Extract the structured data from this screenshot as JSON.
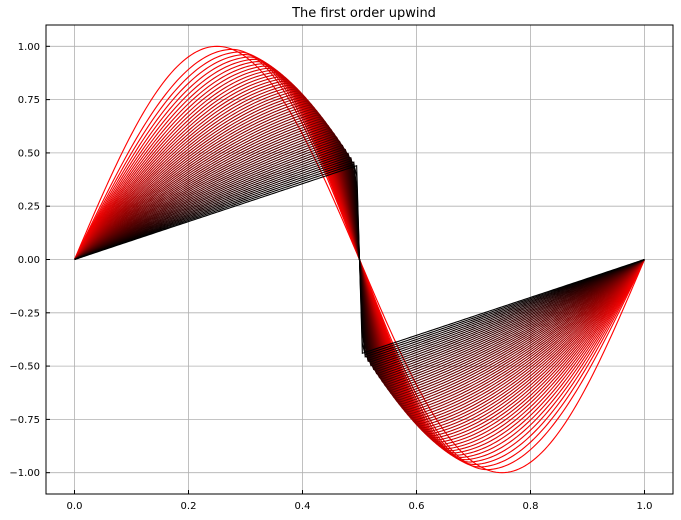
{
  "chart_data": {
    "type": "line",
    "title": "The first order upwind",
    "xlabel": "",
    "ylabel": "",
    "xlim": [
      -0.05,
      1.05
    ],
    "ylim": [
      -1.1,
      1.1
    ],
    "grid": true,
    "x_ticks": [
      {
        "value": 0.0,
        "label": "0.0"
      },
      {
        "value": 0.2,
        "label": "0.2"
      },
      {
        "value": 0.4,
        "label": "0.4"
      },
      {
        "value": 0.6,
        "label": "0.6"
      },
      {
        "value": 0.8,
        "label": "0.8"
      },
      {
        "value": 1.0,
        "label": "1.0"
      }
    ],
    "y_ticks": [
      {
        "value": 1.0,
        "label": "1.00"
      },
      {
        "value": 0.75,
        "label": "0.75"
      },
      {
        "value": 0.5,
        "label": "0.50"
      },
      {
        "value": 0.25,
        "label": "0.25"
      },
      {
        "value": 0.0,
        "label": "0.00"
      },
      {
        "value": -0.25,
        "label": "−0.25"
      },
      {
        "value": -0.5,
        "label": "−0.50"
      },
      {
        "value": -0.75,
        "label": "−0.75"
      },
      {
        "value": -1.0,
        "label": "−1.00"
      }
    ],
    "curve_family": {
      "description_of_color": "series drawn from red (initial, sin(2*pi*x)) to black (final, near-sawtooth)",
      "num_curves": 60,
      "x_range": [
        0.0,
        1.0
      ],
      "initial_curve": "sin(2*pi*x)",
      "final_peak": 0.44,
      "jump_at": 0.5,
      "color_start": "#ff0000",
      "color_end": "#000000"
    }
  }
}
